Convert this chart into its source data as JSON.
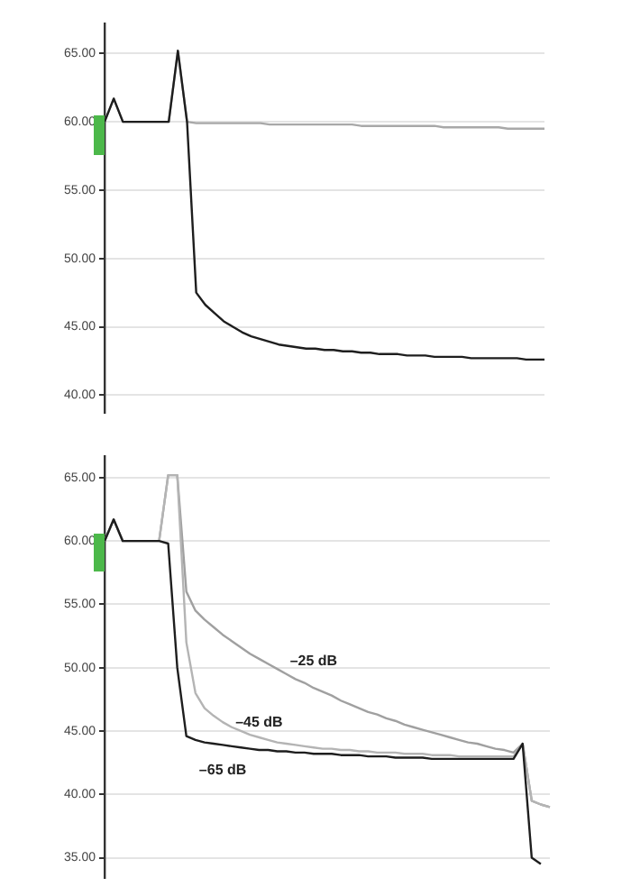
{
  "chart_data": [
    {
      "type": "line",
      "categories": [
        null,
        null,
        null,
        null,
        null,
        null,
        null,
        null,
        null,
        null,
        null,
        null,
        null,
        null,
        null,
        null,
        null,
        null,
        null,
        null,
        null,
        null,
        null,
        null,
        null,
        null,
        null,
        null,
        null,
        null,
        null,
        null,
        null,
        null,
        null,
        null,
        null,
        null,
        null,
        null,
        null,
        null,
        null,
        null,
        null,
        null,
        null,
        null,
        null
      ],
      "series": [
        {
          "color": "#a8a8a8",
          "values": [
            60,
            61.7,
            60,
            60,
            60,
            60,
            60,
            60,
            65.2,
            60,
            59.9,
            59.9,
            59.9,
            59.9,
            59.9,
            59.9,
            59.9,
            59.9,
            59.8,
            59.8,
            59.8,
            59.8,
            59.8,
            59.8,
            59.8,
            59.8,
            59.8,
            59.8,
            59.7,
            59.7,
            59.7,
            59.7,
            59.7,
            59.7,
            59.7,
            59.7,
            59.7,
            59.6,
            59.6,
            59.6,
            59.6,
            59.6,
            59.6,
            59.6,
            59.5,
            59.5,
            59.5,
            59.5,
            59.5
          ]
        },
        {
          "color": "#1e1e1e",
          "values": [
            60,
            61.7,
            60,
            60,
            60,
            60,
            60,
            60,
            65.2,
            60,
            47.5,
            46.6,
            46,
            45.4,
            45,
            44.6,
            44.3,
            44.1,
            43.9,
            43.7,
            43.6,
            43.5,
            43.4,
            43.4,
            43.3,
            43.3,
            43.2,
            43.2,
            43.1,
            43.1,
            43,
            43,
            43,
            42.9,
            42.9,
            42.9,
            42.8,
            42.8,
            42.8,
            42.8,
            42.7,
            42.7,
            42.7,
            42.7,
            42.7,
            42.7,
            42.6,
            42.6,
            42.6
          ]
        }
      ],
      "ylim": [
        38.7,
        67.2
      ],
      "yticks": [
        {
          "value": 40,
          "label": "40.00"
        },
        {
          "value": 45,
          "label": "45.00"
        },
        {
          "value": 50,
          "label": "50.00"
        },
        {
          "value": 55,
          "label": "55.00"
        },
        {
          "value": 60,
          "label": "60.00"
        },
        {
          "value": 65,
          "label": "65.00"
        }
      ],
      "grid": "y",
      "legend": false,
      "tick_labels": "y"
    },
    {
      "type": "line",
      "categories": [
        null,
        null,
        null,
        null,
        null,
        null,
        null,
        null,
        null,
        null,
        null,
        null,
        null,
        null,
        null,
        null,
        null,
        null,
        null,
        null,
        null,
        null,
        null,
        null,
        null,
        null,
        null,
        null,
        null,
        null,
        null,
        null,
        null,
        null,
        null,
        null,
        null,
        null,
        null,
        null,
        null,
        null,
        null,
        null,
        null,
        null,
        null,
        null,
        null,
        null
      ],
      "series": [
        {
          "name": "–25 dB",
          "color": "#a0a0a0",
          "values": [
            60,
            61.7,
            60,
            60,
            60,
            60,
            60,
            65.2,
            65.2,
            56,
            54.5,
            53.8,
            53.2,
            52.6,
            52.1,
            51.6,
            51.1,
            50.7,
            50.3,
            49.9,
            49.5,
            49.1,
            48.8,
            48.4,
            48.1,
            47.8,
            47.4,
            47.1,
            46.8,
            46.5,
            46.3,
            46,
            45.8,
            45.5,
            45.3,
            45.1,
            44.9,
            44.7,
            44.5,
            44.3,
            44.1,
            44,
            43.8,
            43.6,
            43.5,
            43.3,
            44,
            39.5,
            39.2,
            39
          ]
        },
        {
          "name": "–45 dB",
          "color": "#b4b4b4",
          "values": [
            60,
            61.7,
            60,
            60,
            60,
            60,
            60,
            65.2,
            65.2,
            52,
            48,
            46.8,
            46.2,
            45.7,
            45.3,
            45,
            44.7,
            44.5,
            44.3,
            44.1,
            44,
            43.9,
            43.8,
            43.7,
            43.6,
            43.6,
            43.5,
            43.5,
            43.4,
            43.4,
            43.3,
            43.3,
            43.3,
            43.2,
            43.2,
            43.2,
            43.1,
            43.1,
            43.1,
            43,
            43,
            43,
            43,
            43,
            43,
            43,
            44,
            39.5,
            39.2,
            39
          ]
        },
        {
          "name": "–65 dB",
          "color": "#1e1e1e",
          "values": [
            60,
            61.7,
            60,
            60,
            60,
            60,
            60,
            59.8,
            50,
            44.6,
            44.3,
            44.1,
            44,
            43.9,
            43.8,
            43.7,
            43.6,
            43.5,
            43.5,
            43.4,
            43.4,
            43.3,
            43.3,
            43.2,
            43.2,
            43.2,
            43.1,
            43.1,
            43.1,
            43,
            43,
            43,
            42.9,
            42.9,
            42.9,
            42.9,
            42.8,
            42.8,
            42.8,
            42.8,
            42.8,
            42.8,
            42.8,
            42.8,
            42.8,
            42.8,
            44,
            35,
            34.5,
            null
          ]
        }
      ],
      "ylim": [
        33.4,
        66.7
      ],
      "yticks": [
        {
          "value": 35,
          "label": "35.00"
        },
        {
          "value": 40,
          "label": "40.00"
        },
        {
          "value": 45,
          "label": "45.00"
        },
        {
          "value": 50,
          "label": "50.00"
        },
        {
          "value": 55,
          "label": "55.00"
        },
        {
          "value": 60,
          "label": "60.00"
        },
        {
          "value": 65,
          "label": "65.00"
        }
      ],
      "grid": "y",
      "legend": false,
      "tick_labels": "y"
    }
  ]
}
